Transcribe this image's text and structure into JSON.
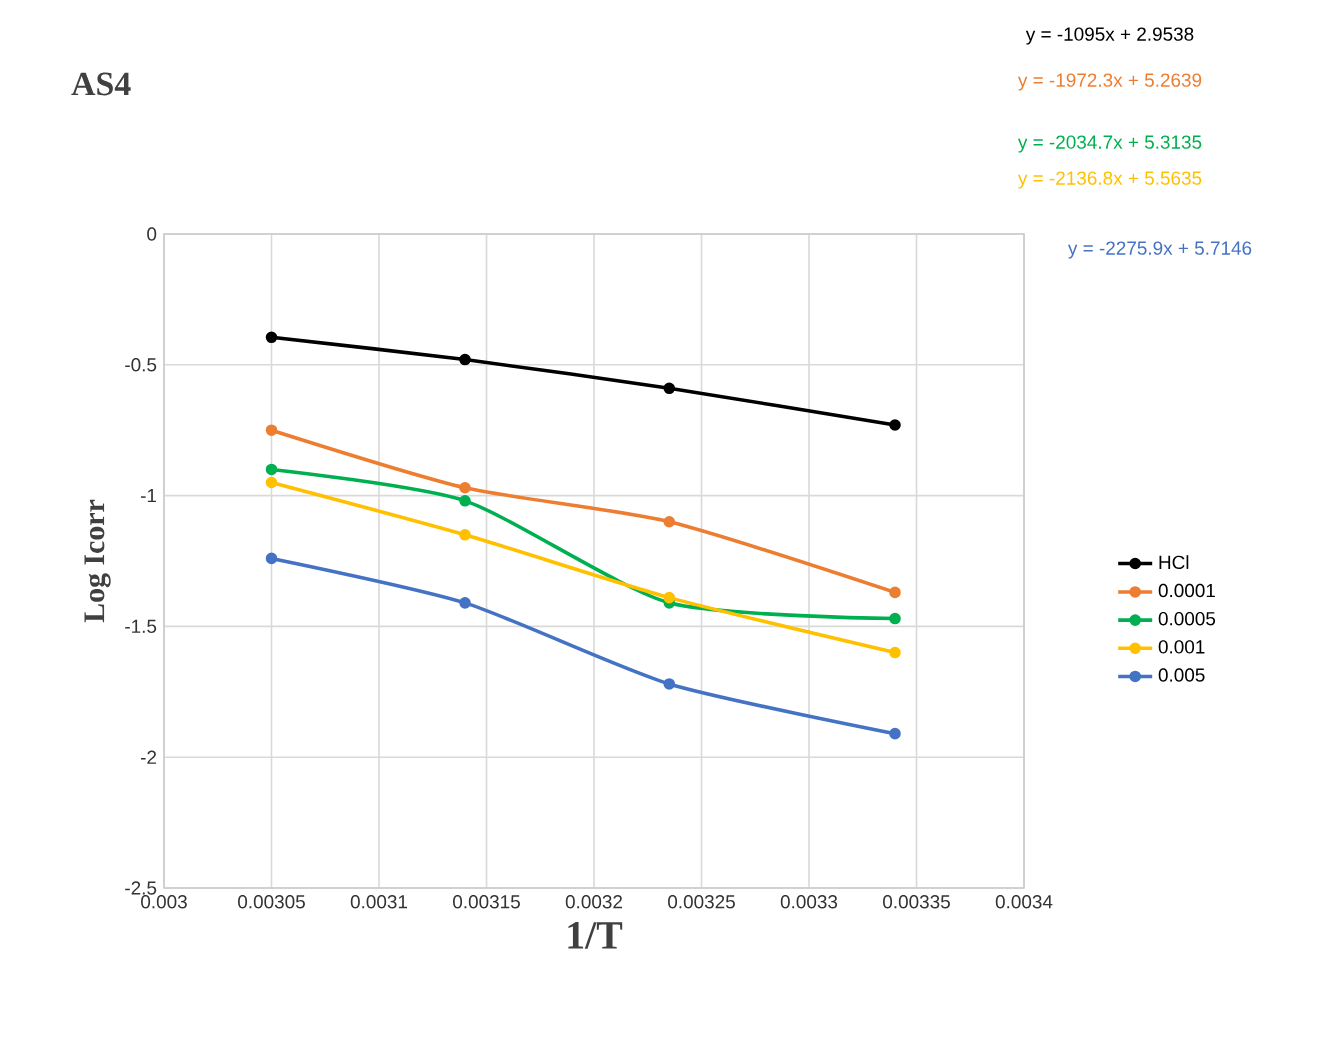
{
  "chart_data": {
    "type": "line",
    "title": "AS4",
    "xlabel": "1/T",
    "ylabel": "Log Icorr",
    "x": [
      0.00305,
      0.00314,
      0.003235,
      0.00334
    ],
    "series": [
      {
        "name": "HCl",
        "color": "#000000",
        "values": [
          -0.395,
          -0.48,
          -0.59,
          -0.73
        ]
      },
      {
        "name": "0.0001",
        "color": "#ed7d31",
        "values": [
          -0.75,
          -0.97,
          -1.1,
          -1.37
        ]
      },
      {
        "name": "0.0005",
        "color": "#00b050",
        "values": [
          -0.9,
          -1.02,
          -1.41,
          -1.47
        ]
      },
      {
        "name": "0.001",
        "color": "#ffc000",
        "values": [
          -0.95,
          -1.15,
          -1.39,
          -1.6
        ]
      },
      {
        "name": "0.005",
        "color": "#4472c4",
        "values": [
          -1.24,
          -1.41,
          -1.72,
          -1.91
        ]
      }
    ],
    "xlim": [
      0.003,
      0.0034
    ],
    "xticks": [
      0.003,
      0.00305,
      0.0031,
      0.00315,
      0.0032,
      0.00325,
      0.0033,
      0.00335,
      0.0034
    ],
    "ylim": [
      -2.5,
      0
    ],
    "yticks": [
      -2.5,
      -2,
      -1.5,
      -1,
      -0.5,
      0
    ],
    "grid": true,
    "legend": "right",
    "marker": "circle",
    "line_style": "solid",
    "annotations": [
      "y = -1095x + 2.9538",
      "y = -1972.3x + 5.2639",
      "y = -2034.7x + 5.3135",
      "y = -2136.8x + 5.5635",
      "y = -2275.9x + 5.7146"
    ]
  }
}
